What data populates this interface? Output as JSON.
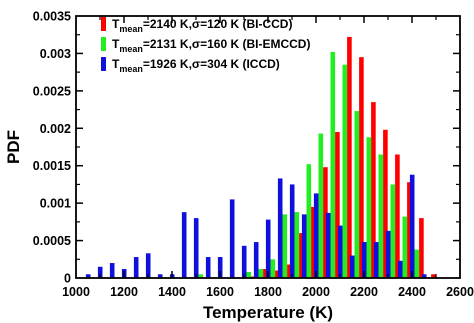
{
  "chart_data": {
    "type": "bar",
    "title": "",
    "xlabel": "Temperature (K)",
    "ylabel": "PDF",
    "xlim": [
      1000,
      2600
    ],
    "ylim": [
      0,
      0.0035
    ],
    "x_ticks": [
      "1000",
      "1200",
      "1400",
      "1600",
      "1800",
      "2000",
      "2200",
      "2400",
      "2600"
    ],
    "y_ticks": [
      "0",
      "0.0005",
      "0.001",
      "0.0015",
      "0.002",
      "0.0025",
      "0.003",
      "0.0035"
    ],
    "grid": false,
    "legend_position": "top-left",
    "x": [
      1070,
      1120,
      1170,
      1220,
      1270,
      1320,
      1370,
      1420,
      1470,
      1520,
      1570,
      1620,
      1670,
      1720,
      1770,
      1820,
      1870,
      1920,
      1970,
      2020,
      2070,
      2120,
      2170,
      2220,
      2270,
      2320,
      2370,
      2420,
      2470
    ],
    "series": [
      {
        "name_main": "T",
        "name_sub": "mean",
        "name_rest": "=2140 K,σ=120 K (BI-CCD)",
        "color": "#ff0000",
        "values": [
          0,
          0,
          0,
          0,
          0,
          0,
          0,
          0,
          0,
          0,
          0,
          0,
          0,
          2e-05,
          0.00012,
          0.0001,
          0.00018,
          0.0006,
          0.00095,
          0.00148,
          0.00195,
          0.00322,
          0.00295,
          0.00235,
          0.00198,
          0.00165,
          0.00128,
          0.0008,
          5e-05
        ]
      },
      {
        "name_main": "T",
        "name_sub": "mean",
        "name_rest": "=2131 K,σ=160 K (BI-EMCCD)",
        "color": "#22ee22",
        "values": [
          0,
          0,
          0,
          0,
          0,
          0,
          0,
          0,
          0,
          5e-05,
          0,
          0,
          0,
          8e-05,
          0.00012,
          0.00025,
          0.00085,
          0.00088,
          0.00152,
          0.00193,
          0.00302,
          0.00285,
          0.00223,
          0.00188,
          0.00165,
          0.00125,
          0.00082,
          0.00038,
          0
        ]
      },
      {
        "name_main": "T",
        "name_sub": "mean",
        "name_rest": "=1926 K,σ=304 K (ICCD)",
        "color": "#1010dd",
        "values": [
          5e-05,
          0.00015,
          0.0002,
          0.00012,
          0.00028,
          0.00033,
          5e-05,
          5e-05,
          0.00088,
          0.0008,
          0.00028,
          0.00028,
          0.00105,
          0.00043,
          0.00048,
          0.00078,
          0.00133,
          0.00125,
          0.00085,
          0.00113,
          0.00087,
          0.0007,
          0.0003,
          0.00048,
          0.00048,
          0.00063,
          0.00023,
          0.00138,
          5e-05
        ]
      }
    ]
  }
}
